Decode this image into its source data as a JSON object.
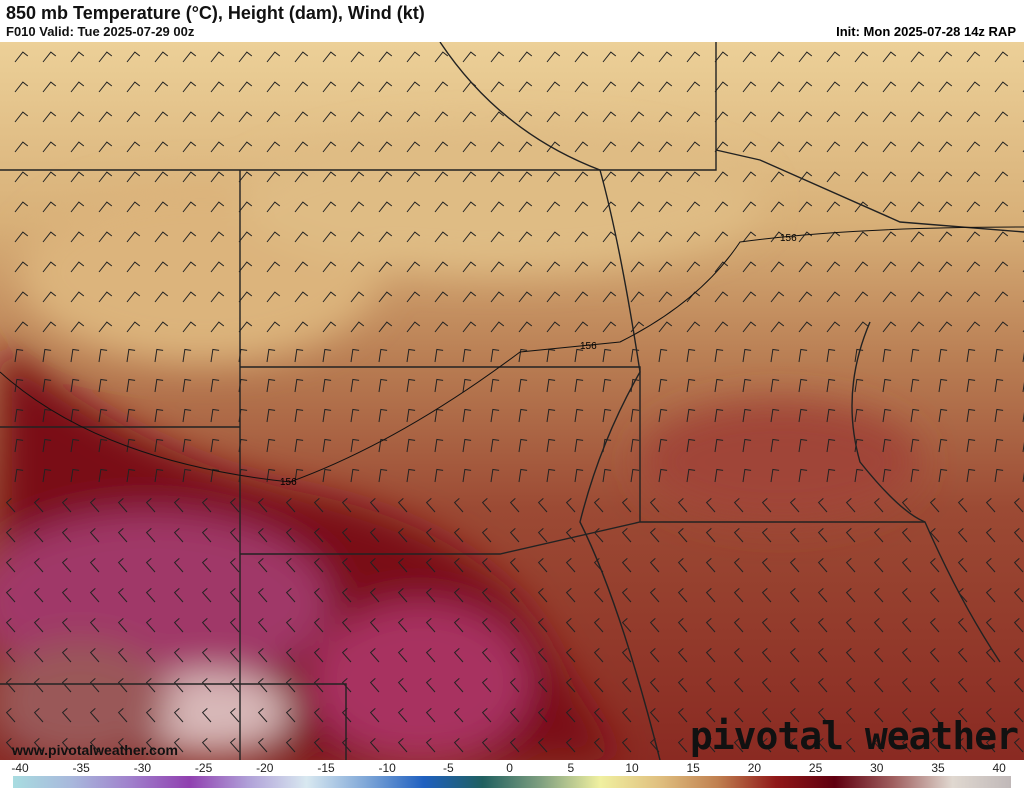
{
  "header": {
    "title": "850 mb Temperature (°C), Height (dam), Wind (kt)",
    "valid": "F010 Valid: Tue 2025-07-29 00z",
    "init": "Init: Mon 2025-07-28 14z RAP"
  },
  "contours": [
    {
      "label": "156"
    },
    {
      "label": "156"
    },
    {
      "label": "156"
    }
  ],
  "watermark": {
    "site": "www.pivotalweather.com",
    "brand": "pivotal weather"
  },
  "colorbar": {
    "ticks": [
      "-40",
      "-35",
      "-30",
      "-25",
      "-20",
      "-15",
      "-10",
      "-5",
      "0",
      "5",
      "10",
      "15",
      "20",
      "25",
      "30",
      "35",
      "40"
    ],
    "colors": [
      "#a8dce0",
      "#a8b8dc",
      "#a080cc",
      "#9040b0",
      "#b0a0d8",
      "#d8e8f0",
      "#80a8d8",
      "#2060c0",
      "#206060",
      "#80a080",
      "#f0f0a0",
      "#e0c080",
      "#c08050",
      "#901818",
      "#600010",
      "#a06060",
      "#e0d8d0",
      "#c0b8b8"
    ]
  }
}
